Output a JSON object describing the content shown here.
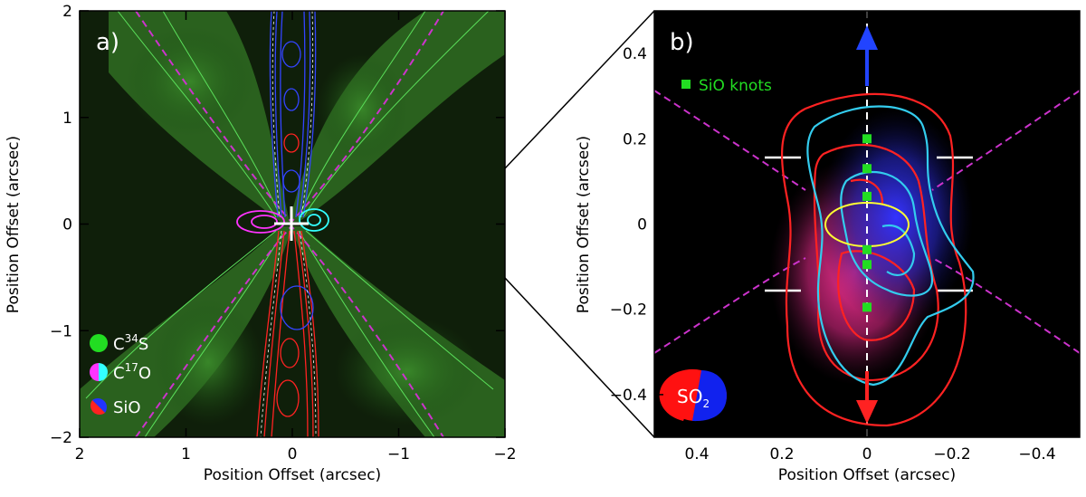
{
  "chart_data": [
    {
      "type": "contour",
      "panel_label": "a)",
      "xlabel": "Position Offset (arcsec)",
      "ylabel": "Position Offset (arcsec)",
      "xlim": [
        2,
        -2
      ],
      "ylim": [
        -2,
        2
      ],
      "x_ticks": [
        2,
        1,
        0,
        -1,
        -2
      ],
      "y_ticks": [
        -2,
        -1,
        0,
        1,
        2
      ],
      "x_tick_labels": [
        "2",
        "1",
        "0",
        "−1",
        "−2"
      ],
      "y_tick_labels": [
        "−2",
        "−1",
        "0",
        "1",
        "2"
      ],
      "background": "C34S emission (green map)",
      "legend": [
        {
          "text": "C",
          "sup": "34",
          "rest": "S",
          "colors": [
            "#22dd22"
          ]
        },
        {
          "text": "C",
          "sup": "17",
          "rest": "O",
          "colors": [
            "#ff33ff",
            "#33ffff"
          ]
        },
        {
          "text": "SiO",
          "sup": "",
          "rest": "",
          "colors": [
            "#ff2222",
            "#2233ff"
          ]
        }
      ],
      "features": {
        "sio_blue_jet": {
          "x_range": [
            0.2,
            -0.2
          ],
          "y_range": [
            0.0,
            2.0
          ],
          "color": "#2233ff"
        },
        "sio_red_jet": {
          "x_range": [
            0.25,
            -0.2
          ],
          "y_range": [
            -2.0,
            0.0
          ],
          "color": "#ff2222"
        },
        "c17o_magenta": {
          "center": [
            0.3,
            0.0
          ],
          "color": "#ff33ff"
        },
        "c17o_cyan": {
          "center": [
            -0.2,
            0.0
          ],
          "color": "#33ffff"
        },
        "cavity_curves_color": "#cc33cc"
      },
      "colors": {
        "green": "#22dd22",
        "blue": "#2233ff",
        "red": "#ff2222",
        "magenta": "#ff33ff",
        "cyan": "#33ffff",
        "dashed": "#cc33cc"
      }
    },
    {
      "type": "contour",
      "panel_label": "b)",
      "xlabel": "Position Offset (arcsec)",
      "ylabel": "Position Offset (arcsec)",
      "xlim": [
        0.5,
        -0.5
      ],
      "ylim": [
        -0.5,
        0.5
      ],
      "x_ticks": [
        0.4,
        0.2,
        0,
        -0.2,
        -0.4
      ],
      "y_ticks": [
        -0.4,
        -0.2,
        0,
        0.2,
        0.4
      ],
      "x_tick_labels": [
        "0.4",
        "0.2",
        "0",
        "−0.2",
        "−0.4"
      ],
      "y_tick_labels": [
        "−0.4",
        "−0.2",
        "0",
        "0.2",
        "0.4"
      ],
      "legend_knots": "SiO knots",
      "beam_label": {
        "text": "SO",
        "sub": "2"
      },
      "sio_knots": [
        {
          "x": 0.0,
          "y": 0.2
        },
        {
          "x": 0.0,
          "y": 0.13
        },
        {
          "x": 0.0,
          "y": 0.065
        },
        {
          "x": 0.0,
          "y": -0.06
        },
        {
          "x": 0.0,
          "y": -0.095
        },
        {
          "x": 0.0,
          "y": -0.195
        }
      ],
      "outflow_arrows": [
        {
          "direction": "up",
          "color": "#2244ff"
        },
        {
          "direction": "down",
          "color": "#ff2222"
        }
      ],
      "disk_ellipse": {
        "center": [
          0.0,
          0.0
        ],
        "color": "#ffff33"
      },
      "colors": {
        "red": "#ff2222",
        "cyan": "#33ccee",
        "yellow": "#ffff33",
        "knot": "#22dd22",
        "dashed": "#cc33cc",
        "white": "#ffffff"
      }
    }
  ]
}
